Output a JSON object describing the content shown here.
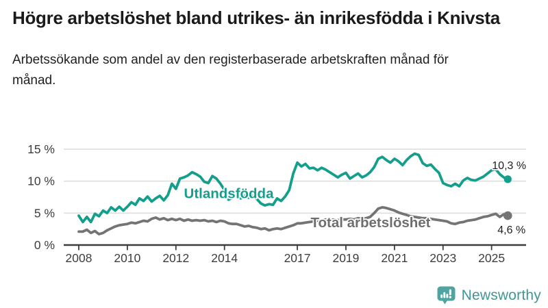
{
  "header": {
    "title": "Högre arbetslöshet bland utrikes- än inrikesfödda i Knivsta",
    "subtitle": "Arbetssökande som andel av den registerbaserade arbetskraften månad för månad."
  },
  "chart_data": {
    "type": "line",
    "title": "Högre arbetslöshet bland utrikes- än inrikesfödda i Knivsta",
    "xlabel": "",
    "ylabel": "",
    "unit": "%",
    "grid": "horizontal",
    "legend_position": "inline-labels",
    "ylim": [
      0,
      15.5
    ],
    "xlim": [
      2007.4,
      2026.3
    ],
    "x_start": 2008.0,
    "x_step_years": 0.166667,
    "x_ticks": [
      {
        "value": 2008,
        "label": "2008"
      },
      {
        "value": 2010,
        "label": "2010"
      },
      {
        "value": 2012,
        "label": "2012"
      },
      {
        "value": 2014,
        "label": "2014"
      },
      {
        "value": 2017,
        "label": "2017"
      },
      {
        "value": 2019,
        "label": "2019"
      },
      {
        "value": 2021,
        "label": "2021"
      },
      {
        "value": 2023,
        "label": "2023"
      },
      {
        "value": 2025,
        "label": "2025"
      }
    ],
    "y_ticks": [
      {
        "value": 15,
        "label": "15 %"
      },
      {
        "value": 10,
        "label": "10 %"
      },
      {
        "value": 5,
        "label": "5 %"
      },
      {
        "value": 0,
        "label": "0 %"
      }
    ],
    "series": [
      {
        "name": "Utlandsfödda",
        "color": "#149e8c",
        "end_value": 10.3,
        "end_label": "10,3 %",
        "values": [
          4.6,
          3.6,
          4.4,
          3.6,
          4.9,
          4.5,
          5.4,
          5.0,
          5.9,
          5.4,
          6.0,
          5.4,
          6.0,
          6.7,
          6.3,
          7.3,
          6.9,
          7.6,
          6.8,
          7.3,
          7.7,
          7.0,
          7.8,
          9.6,
          8.8,
          10.4,
          10.6,
          10.9,
          11.4,
          11.1,
          10.7,
          9.9,
          9.7,
          10.8,
          10.4,
          9.6,
          8.6,
          7.1,
          7.4,
          7.7,
          7.3,
          7.7,
          7.4,
          7.7,
          7.2,
          6.5,
          6.2,
          6.4,
          6.3,
          7.3,
          6.9,
          7.6,
          8.6,
          11.2,
          12.9,
          12.3,
          12.7,
          12.0,
          12.1,
          11.7,
          12.1,
          11.8,
          11.4,
          11.0,
          10.6,
          11.0,
          11.3,
          10.4,
          10.8,
          11.2,
          10.6,
          10.9,
          11.4,
          12.2,
          13.5,
          13.8,
          13.3,
          12.9,
          13.5,
          13.1,
          12.5,
          13.3,
          13.9,
          14.3,
          14.1,
          12.8,
          12.4,
          12.6,
          11.9,
          11.3,
          9.7,
          9.4,
          9.2,
          9.6,
          9.2,
          10.1,
          10.5,
          10.2,
          10.1,
          10.4,
          10.7,
          11.2,
          11.7,
          11.9,
          11.1,
          10.6,
          10.3
        ]
      },
      {
        "name": "Total arbetslöshet",
        "color": "#747474",
        "end_value": 4.6,
        "end_label": "4,6 %",
        "values": [
          2.1,
          2.1,
          2.4,
          1.9,
          2.2,
          1.7,
          1.9,
          2.3,
          2.6,
          2.9,
          3.1,
          3.2,
          3.3,
          3.5,
          3.4,
          3.6,
          3.8,
          3.7,
          4.1,
          4.3,
          4.0,
          4.2,
          3.9,
          4.1,
          3.9,
          4.1,
          3.8,
          4.0,
          3.8,
          3.9,
          3.8,
          3.9,
          3.7,
          3.8,
          3.6,
          3.8,
          3.7,
          3.4,
          3.3,
          3.3,
          3.1,
          2.9,
          3.0,
          2.8,
          2.7,
          2.5,
          2.6,
          2.3,
          2.5,
          2.6,
          2.5,
          2.7,
          2.9,
          3.1,
          3.4,
          3.4,
          3.5,
          3.6,
          3.7,
          3.8,
          3.9,
          4.0,
          3.9,
          4.0,
          3.9,
          4.0,
          4.0,
          4.1,
          4.0,
          4.2,
          4.1,
          4.2,
          4.4,
          5.0,
          5.7,
          5.9,
          5.8,
          5.6,
          5.4,
          5.1,
          4.9,
          4.7,
          4.5,
          4.4,
          4.3,
          4.2,
          4.2,
          4.1,
          4.0,
          3.9,
          3.8,
          3.7,
          3.4,
          3.3,
          3.5,
          3.6,
          3.8,
          3.9,
          4.0,
          4.2,
          4.4,
          4.5,
          4.7,
          4.9,
          4.4,
          4.8,
          4.6
        ]
      }
    ]
  },
  "theme": {
    "accent_teal": "#149e8c",
    "line_gray": "#747474",
    "logo_icon_color": "#4fa3a0",
    "logo_text_color": "#3e9796"
  },
  "footer": {
    "brand": "Newsworthy"
  }
}
